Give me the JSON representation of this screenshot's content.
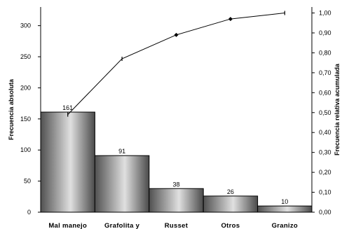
{
  "chart_data": {
    "type": "bar",
    "categories": [
      "Mal manejo",
      "Grafolita y",
      "Russet",
      "Otros",
      "Granizo"
    ],
    "series": [
      {
        "name": "Frecuencia absoluta",
        "values": [
          161,
          91,
          38,
          26,
          10
        ],
        "axis": "left",
        "kind": "bar",
        "labels": [
          "161",
          "91",
          "38",
          "26",
          "10"
        ]
      },
      {
        "name": "Frecuencia relativa acumulada",
        "values": [
          0.49,
          0.77,
          0.89,
          0.97,
          1.0
        ],
        "axis": "right",
        "kind": "line"
      }
    ],
    "ylabel": "Frecuencia absoluta",
    "y2label": "Frecuencia relativa acumulada",
    "ylim": [
      0,
      330
    ],
    "y2lim": [
      0,
      1.03
    ],
    "yticks": [
      0,
      50,
      100,
      150,
      200,
      250,
      300
    ],
    "yticklabels": [
      "0",
      "50",
      "100",
      "150",
      "200",
      "250",
      "300"
    ],
    "y2ticks": [
      0,
      0.1,
      0.2,
      0.3,
      0.4,
      0.5,
      0.6,
      0.7,
      0.8,
      0.9,
      1.0
    ],
    "y2ticklabels": [
      "0,00",
      "0,10",
      "0,20",
      "0,30",
      "0,40",
      "0,50",
      "0,60",
      "0,70",
      "0,80",
      "0,90",
      "1,00"
    ],
    "grid": false,
    "legend": "none",
    "colors": {
      "bar_dark": "#505050",
      "bar_light": "#e0e0e0",
      "line": "#000000"
    }
  }
}
